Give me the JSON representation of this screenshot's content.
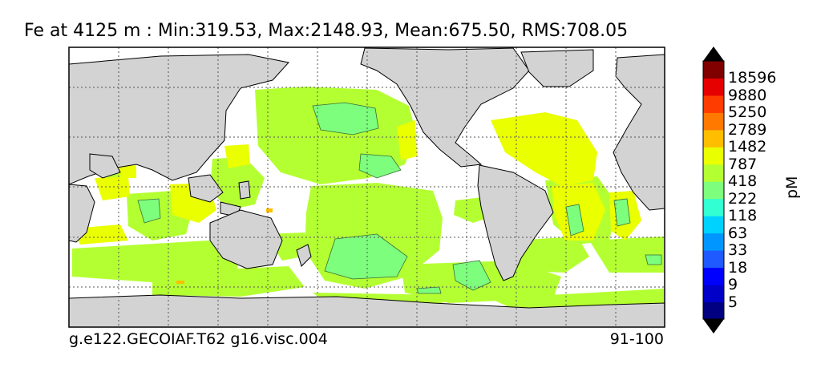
{
  "title": "Fe at 4125 m : Min:319.53, Max:2148.93, Mean:675.50, RMS:708.05",
  "footer": {
    "left": "g.e122.GECOIAF.T62 g16.visc.004",
    "right": "91-100"
  },
  "colorbar": {
    "unit": "pM",
    "labels": [
      "18596",
      "9880",
      "5250",
      "2789",
      "1482",
      "787",
      "418",
      "222",
      "118",
      "63",
      "33",
      "18",
      "9",
      "5"
    ],
    "colors": [
      "#000080",
      "#0000c8",
      "#0000ff",
      "#1e5aff",
      "#0096ff",
      "#00d2ff",
      "#32ffd2",
      "#7dff7d",
      "#b4ff32",
      "#eaff00",
      "#ffbe00",
      "#ff7800",
      "#ff3c00",
      "#e60000",
      "#800000"
    ],
    "under_color": "#000000",
    "over_color": "#000000"
  },
  "map": {
    "projection": "global lat-lon, Pacific-centered",
    "land_color": "#d3d3d3",
    "ocean_nodata_color": "#ffffff",
    "gridlines": "dotted"
  }
}
